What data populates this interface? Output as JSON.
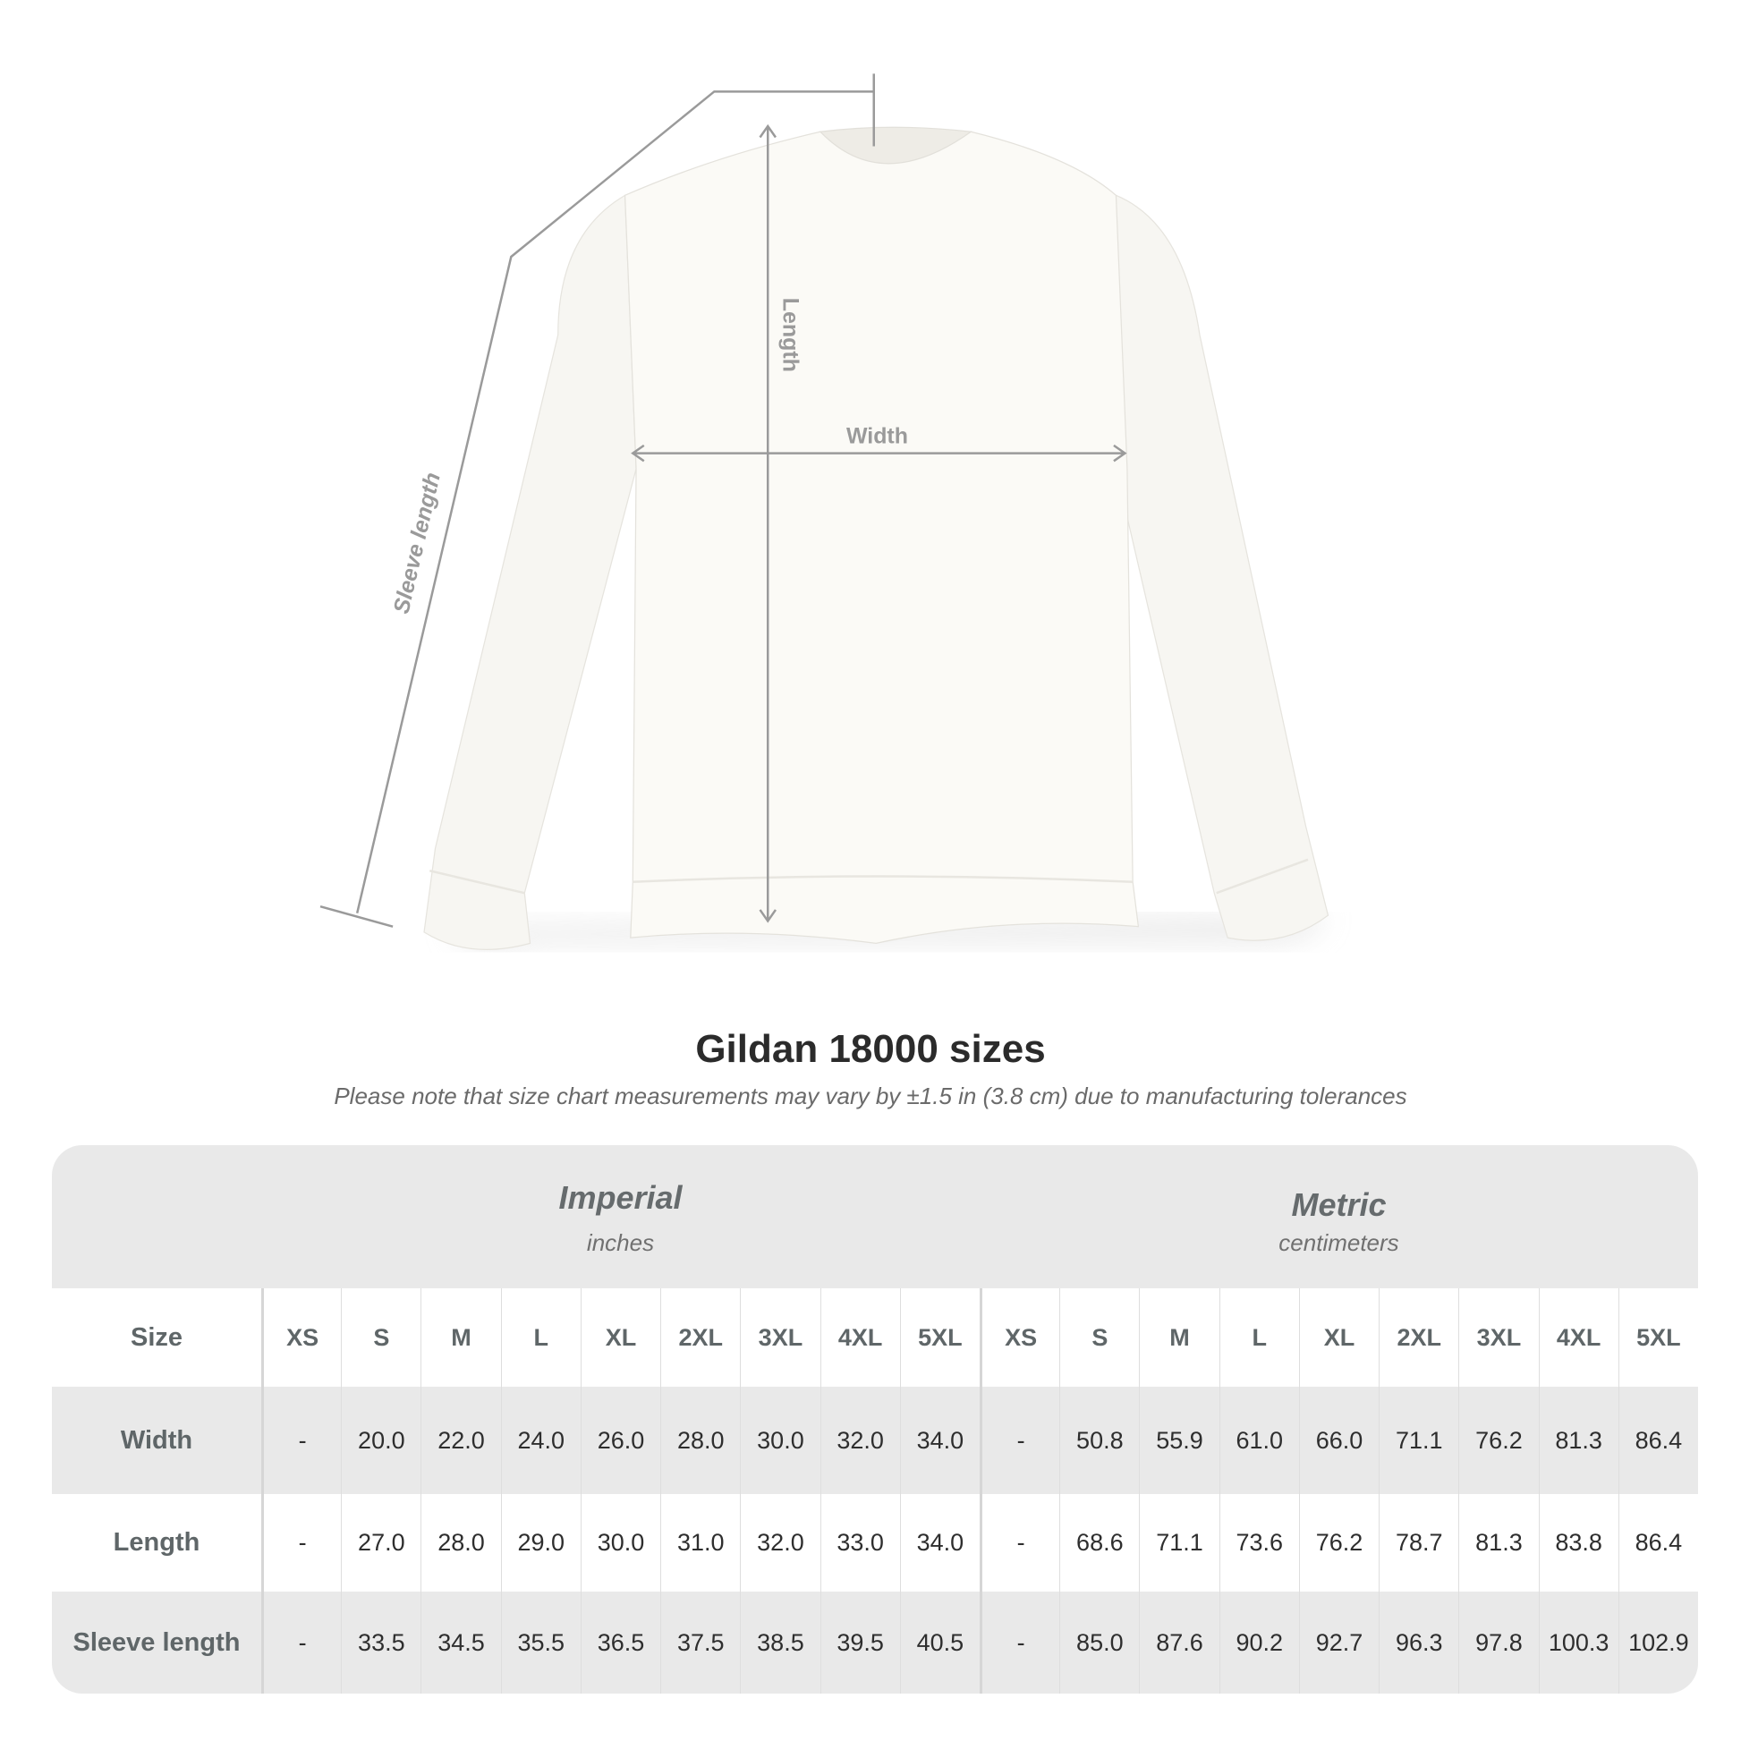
{
  "diagram": {
    "labels": {
      "length": "Length",
      "width": "Width",
      "sleeve": "Sleeve length"
    },
    "garment_color": "#fbfaf6",
    "line_color": "#9a9a9a"
  },
  "title": "Gildan 18000 sizes",
  "note": "Please note that size chart measurements may vary by ±1.5 in (3.8 cm) due to manufacturing tolerances",
  "table": {
    "groups": [
      {
        "name": "Imperial",
        "unit": "inches"
      },
      {
        "name": "Metric",
        "unit": "centimeters"
      }
    ],
    "size_label": "Size",
    "sizes": [
      "XS",
      "S",
      "M",
      "L",
      "XL",
      "2XL",
      "3XL",
      "4XL",
      "5XL"
    ],
    "rows": [
      {
        "label": "Width",
        "imperial": [
          "-",
          "20.0",
          "22.0",
          "24.0",
          "26.0",
          "28.0",
          "30.0",
          "32.0",
          "34.0"
        ],
        "metric": [
          "-",
          "50.8",
          "55.9",
          "61.0",
          "66.0",
          "71.1",
          "76.2",
          "81.3",
          "86.4"
        ]
      },
      {
        "label": "Length",
        "imperial": [
          "-",
          "27.0",
          "28.0",
          "29.0",
          "30.0",
          "31.0",
          "32.0",
          "33.0",
          "34.0"
        ],
        "metric": [
          "-",
          "68.6",
          "71.1",
          "73.6",
          "76.2",
          "78.7",
          "81.3",
          "83.8",
          "86.4"
        ]
      },
      {
        "label": "Sleeve length",
        "imperial": [
          "-",
          "33.5",
          "34.5",
          "35.5",
          "36.5",
          "37.5",
          "38.5",
          "39.5",
          "40.5"
        ],
        "metric": [
          "-",
          "85.0",
          "87.6",
          "90.2",
          "92.7",
          "96.3",
          "97.8",
          "100.3",
          "102.9"
        ]
      }
    ]
  }
}
